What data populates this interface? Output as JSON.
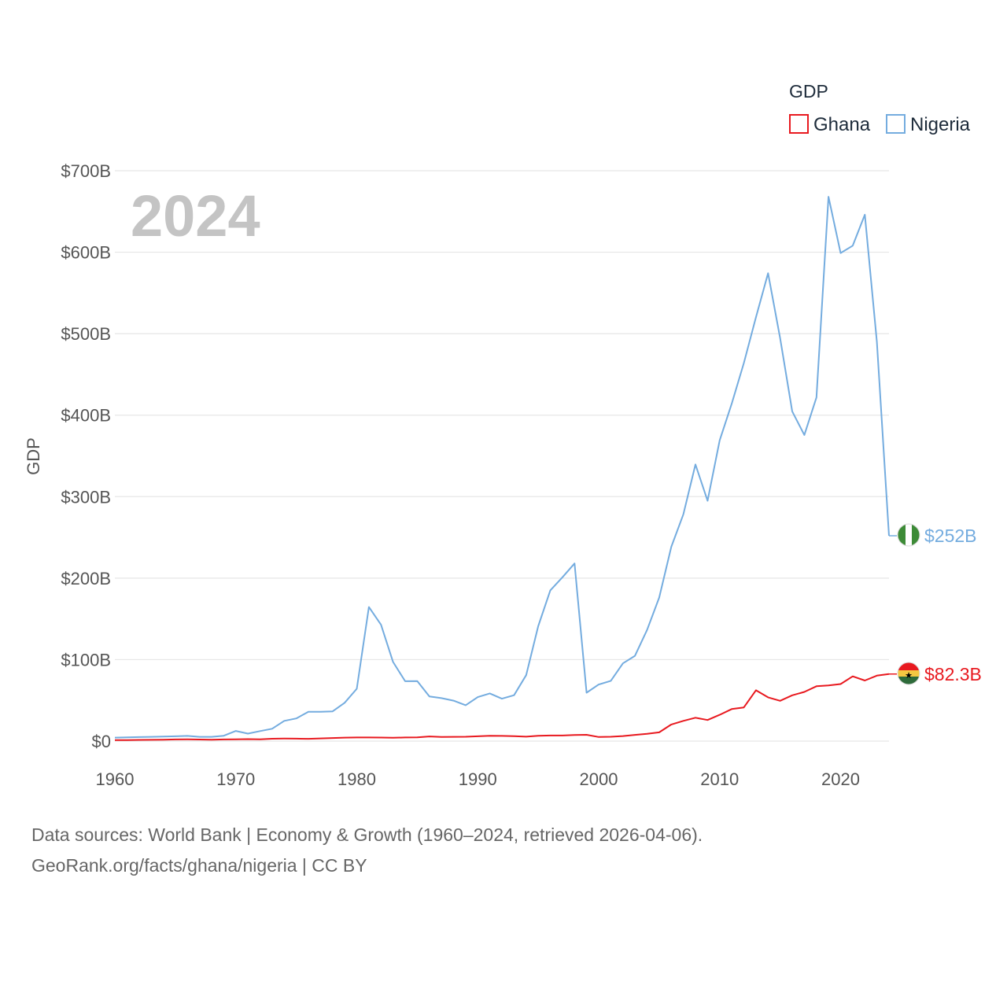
{
  "chart_data": {
    "type": "line",
    "title": "",
    "legend_title": "GDP",
    "legend_position": "top-right",
    "ylabel": "GDP",
    "xlabel": "",
    "year_label": "2024",
    "xlim": [
      1960,
      2024
    ],
    "ylim": [
      0,
      700
    ],
    "y_unit": "billions USD",
    "x_ticks": [
      1960,
      1970,
      1980,
      1990,
      2000,
      2010,
      2020
    ],
    "y_ticks": [
      {
        "value": 0,
        "label": "$0"
      },
      {
        "value": 100,
        "label": "$100B"
      },
      {
        "value": 200,
        "label": "$200B"
      },
      {
        "value": 300,
        "label": "$300B"
      },
      {
        "value": 400,
        "label": "$400B"
      },
      {
        "value": 500,
        "label": "$500B"
      },
      {
        "value": 600,
        "label": "$600B"
      },
      {
        "value": 700,
        "label": "$700B"
      }
    ],
    "x": [
      1960,
      1961,
      1962,
      1963,
      1964,
      1965,
      1966,
      1967,
      1968,
      1969,
      1970,
      1971,
      1972,
      1973,
      1974,
      1975,
      1976,
      1977,
      1978,
      1979,
      1980,
      1981,
      1982,
      1983,
      1984,
      1985,
      1986,
      1987,
      1988,
      1989,
      1990,
      1991,
      1992,
      1993,
      1994,
      1995,
      1996,
      1997,
      1998,
      1999,
      2000,
      2001,
      2002,
      2003,
      2004,
      2005,
      2006,
      2007,
      2008,
      2009,
      2010,
      2011,
      2012,
      2013,
      2014,
      2015,
      2016,
      2017,
      2018,
      2019,
      2020,
      2021,
      2022,
      2023,
      2024
    ],
    "series": [
      {
        "name": "Ghana",
        "color": "#e8191f",
        "end_label": "$82.3B",
        "values": [
          1.2,
          1.3,
          1.4,
          1.5,
          1.6,
          2.0,
          2.1,
          1.9,
          1.7,
          2.0,
          2.2,
          2.4,
          2.2,
          2.9,
          3.1,
          3.0,
          2.8,
          3.3,
          3.8,
          4.2,
          4.4,
          4.4,
          4.3,
          4.1,
          4.4,
          4.5,
          5.7,
          5.1,
          5.2,
          5.3,
          5.9,
          6.6,
          6.4,
          6.0,
          5.4,
          6.5,
          6.9,
          6.9,
          7.5,
          7.7,
          5.0,
          5.3,
          6.2,
          7.6,
          8.9,
          10.7,
          20.4,
          24.8,
          28.7,
          25.9,
          32.2,
          39.3,
          41.3,
          62.4,
          53.7,
          49.4,
          56.2,
          60.3,
          67.3,
          68.3,
          70.0,
          79.5,
          74.3,
          80.3,
          82.3
        ]
      },
      {
        "name": "Nigeria",
        "color": "#74acdf",
        "end_label": "$252B",
        "values": [
          4.2,
          4.5,
          4.9,
          5.2,
          5.6,
          5.9,
          6.4,
          5.2,
          5.2,
          6.6,
          12.5,
          9.2,
          12.3,
          15.2,
          24.8,
          27.8,
          36.0,
          36.0,
          36.5,
          47.0,
          64.2,
          164.5,
          142.8,
          97.1,
          73.5,
          73.7,
          54.8,
          52.7,
          49.6,
          44.0,
          54.0,
          58.5,
          52.0,
          56.3,
          80.9,
          141.0,
          185.0,
          201.0,
          218.0,
          59.4,
          69.4,
          74.0,
          95.4,
          104.7,
          136.4,
          176.1,
          238.5,
          278.3,
          339.5,
          295.0,
          369.1,
          414.1,
          463.9,
          520.1,
          574.2,
          494.6,
          404.6,
          375.7,
          421.7,
          668.0,
          599.0,
          608.0,
          646.0,
          490.0,
          252.0
        ]
      }
    ]
  },
  "footer": {
    "source_line1": "Data sources: World Bank | Economy & Growth (1960–2024, retrieved 2026-04-06).",
    "source_line2": "GeoRank.org/facts/ghana/nigeria | CC BY"
  }
}
